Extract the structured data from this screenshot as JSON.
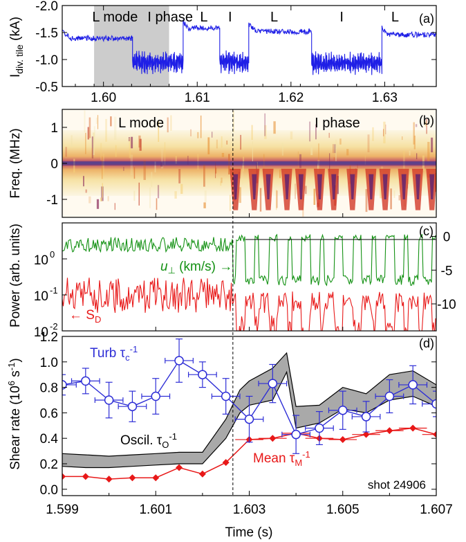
{
  "colors": {
    "current": "#1f1fe6",
    "velocity": "#139113",
    "power": "#e81818",
    "turb": "#2d2dd6",
    "mean": "#e81818",
    "band": "#a9a9a9",
    "shade": "#cccccc"
  },
  "chart_data": [
    {
      "type": "line",
      "panel_label": "(a)",
      "ylabel": "I_div. tile (kA)",
      "ylabel_main": "I",
      "ylabel_sub": "div. tile",
      "ylabel_unit": " (kA)",
      "xlim": [
        1.5956,
        1.6355
      ],
      "ylim": [
        -2.0,
        -0.5
      ],
      "y_inverted": true,
      "xticks": [
        1.6,
        1.61,
        1.62,
        1.63
      ],
      "xtick_labels": [
        "1.60",
        "1.61",
        "1.62",
        "1.63"
      ],
      "yticks": [
        -2.0,
        -1.5,
        -1.0,
        -0.5
      ],
      "ytick_labels": [
        "-2.0",
        "-1.5",
        "-1.0",
        "-0.5"
      ],
      "shaded_x": [
        1.599,
        1.607
      ],
      "annotations": [
        {
          "text": "L mode",
          "x": 1.5988
        },
        {
          "text": "I phase",
          "x": 1.6047
        },
        {
          "text": "L",
          "x": 1.6103
        },
        {
          "text": "I",
          "x": 1.6133
        },
        {
          "text": "L",
          "x": 1.6178
        },
        {
          "text": "I",
          "x": 1.6252
        },
        {
          "text": "L",
          "x": 1.6307
        }
      ],
      "segments": [
        {
          "phase": "L",
          "from": 1.5956,
          "to": 1.6031,
          "level": -1.39
        },
        {
          "phase": "I",
          "from": 1.6031,
          "to": 1.6085,
          "level": -0.95
        },
        {
          "phase": "L",
          "from": 1.6085,
          "to": 1.6124,
          "level": -1.58
        },
        {
          "phase": "I",
          "from": 1.6124,
          "to": 1.6155,
          "level": -0.95
        },
        {
          "phase": "L",
          "from": 1.6155,
          "to": 1.6222,
          "level": -1.52
        },
        {
          "phase": "I",
          "from": 1.6222,
          "to": 1.6297,
          "level": -0.93
        },
        {
          "phase": "L",
          "from": 1.6297,
          "to": 1.6355,
          "level": -1.46
        }
      ]
    },
    {
      "type": "heatmap",
      "panel_label": "(b)",
      "ylabel": "Freq. (MHz)",
      "ylim": [
        -1.5,
        1.5
      ],
      "yticks": [
        1,
        0,
        -1
      ],
      "ytick_labels": [
        "1",
        "0",
        "-1"
      ],
      "xlim": [
        1.599,
        1.607
      ],
      "annotations": [
        {
          "text": "L mode",
          "x": 1.6002
        },
        {
          "text": "I phase",
          "x": 1.6044
        }
      ],
      "burst_times": [
        1.6027,
        1.6031,
        1.6034,
        1.6038,
        1.6041,
        1.6045,
        1.6048,
        1.6052,
        1.6056,
        1.6059,
        1.6063,
        1.6066,
        1.6069
      ]
    },
    {
      "type": "line",
      "panel_label": "(c)",
      "ylabel": "Power (arb. units)",
      "y_scale": "log",
      "ylim": [
        0.01,
        10
      ],
      "yticks": [
        1,
        0.1,
        0.01
      ],
      "ytick_labels": [
        "10",
        "10",
        "10"
      ],
      "ytick_exps": [
        "0",
        "-1",
        "-2"
      ],
      "right_ylim": [
        -14,
        2
      ],
      "right_yticks": [
        0,
        -5,
        -10
      ],
      "right_ytick_labels": [
        "0",
        "-5",
        "-10"
      ],
      "xlim": [
        1.599,
        1.607
      ],
      "series": [
        {
          "name": "u⊥ (km/s)",
          "label_main": "u",
          "label_sub": "⊥",
          "label_rest": " (km/s) →",
          "axis": "right",
          "L_level": -1.2,
          "I_level": -0.2,
          "I_dip": -6.5
        },
        {
          "name": "S_D",
          "label_pre": "← S",
          "label_sub": "D",
          "axis": "left",
          "L_level": 0.12,
          "I_level": 0.05
        }
      ],
      "burst_times": [
        1.6027,
        1.6031,
        1.6034,
        1.6038,
        1.6041,
        1.6045,
        1.6048,
        1.6052,
        1.6056,
        1.6059,
        1.6063,
        1.6066,
        1.6069
      ]
    },
    {
      "type": "line",
      "panel_label": "(d)",
      "ylabel": "Shear rate (10^6 s^-1)",
      "ylabel_pre": "Shear rate (10",
      "ylabel_sup1": "6",
      "ylabel_mid": " s",
      "ylabel_sup2": "-1",
      "ylabel_post": ")",
      "xlabel": "Time (s)",
      "xlim": [
        1.599,
        1.607
      ],
      "ylim": [
        -0.05,
        1.2
      ],
      "xticks": [
        1.599,
        1.601,
        1.603,
        1.605,
        1.607
      ],
      "xtick_labels": [
        "1.599",
        "1.601",
        "1.603",
        "1.605",
        "1.607"
      ],
      "yticks": [
        0.0,
        0.2,
        0.4,
        0.6,
        0.8,
        1.0,
        1.2
      ],
      "ytick_labels": [
        "0.0",
        "0.2",
        "0.4",
        "0.6",
        "0.8",
        "1.0",
        "1.2"
      ],
      "shot_label": "shot 24906",
      "turb_label": {
        "main": "Turb τ",
        "sub": "c",
        "sup": "-1"
      },
      "oscil_label": {
        "main": "Oscil. τ",
        "sub": "O",
        "sup": "-1"
      },
      "mean_label": {
        "main": "Mean τ",
        "sub": "M",
        "sup": "-1"
      },
      "turb": {
        "x": [
          1.599,
          1.5995,
          1.6,
          1.6005,
          1.601,
          1.6015,
          1.602,
          1.6025,
          1.603,
          1.6035,
          1.604,
          1.6045,
          1.605,
          1.6055,
          1.606,
          1.6065,
          1.607
        ],
        "y": [
          0.82,
          0.85,
          0.7,
          0.65,
          0.73,
          1.01,
          0.9,
          0.73,
          0.55,
          0.83,
          0.43,
          0.48,
          0.62,
          0.57,
          0.73,
          0.82,
          0.67
        ],
        "xerr": [
          0.0003,
          0.0003,
          0.0003,
          0.0003,
          0.0003,
          0.0003,
          0.0003,
          0.0003,
          0.0003,
          0.0003,
          0.0003,
          0.0003,
          0.0003,
          0.0003,
          0.0003,
          0.0003,
          0.0003
        ],
        "yerr": [
          0.08,
          0.1,
          0.14,
          0.12,
          0.14,
          0.17,
          0.1,
          0.14,
          0.18,
          0.15,
          0.15,
          0.13,
          0.15,
          0.12,
          0.13,
          0.15,
          0.1
        ]
      },
      "mean": {
        "x": [
          1.599,
          1.5995,
          1.6,
          1.6005,
          1.601,
          1.6015,
          1.602,
          1.6025,
          1.603,
          1.6035,
          1.604,
          1.6045,
          1.605,
          1.6055,
          1.606,
          1.6065,
          1.607
        ],
        "y": [
          0.1,
          0.1,
          0.08,
          0.09,
          0.09,
          0.17,
          0.12,
          0.21,
          0.39,
          0.4,
          0.44,
          0.4,
          0.39,
          0.43,
          0.46,
          0.48,
          0.43
        ],
        "xerr": [
          0.0003,
          0.0003,
          0.0003,
          0.0003,
          0.0003,
          0.0003,
          0.0003,
          0.0003,
          0.0003,
          0.0003,
          0.0003,
          0.0003,
          0.0003,
          0.0003,
          0.0003,
          0.0003,
          0.0003
        ]
      },
      "oscil_band": {
        "x": [
          1.599,
          1.5995,
          1.6,
          1.6005,
          1.601,
          1.6015,
          1.602,
          1.6025,
          1.6028,
          1.603,
          1.6035,
          1.6038,
          1.604,
          1.6045,
          1.605,
          1.6055,
          1.606,
          1.6065,
          1.607
        ],
        "lower": [
          0.18,
          0.17,
          0.17,
          0.18,
          0.19,
          0.2,
          0.2,
          0.4,
          0.6,
          0.66,
          0.7,
          0.92,
          0.48,
          0.52,
          0.63,
          0.6,
          0.7,
          0.73,
          0.65
        ],
        "upper": [
          0.28,
          0.27,
          0.26,
          0.27,
          0.28,
          0.29,
          0.29,
          0.55,
          0.78,
          0.85,
          0.95,
          1.07,
          0.65,
          0.66,
          0.8,
          0.75,
          0.9,
          0.93,
          0.82
        ]
      }
    }
  ]
}
